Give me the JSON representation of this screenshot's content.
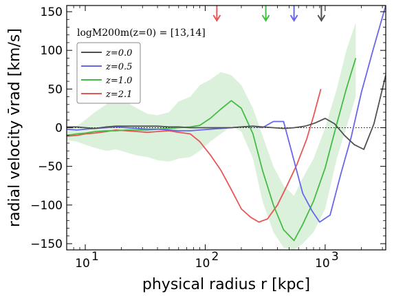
{
  "chart_data": {
    "type": "line",
    "title": "",
    "xlabel": "physical radius r [kpc]",
    "ylabel": "radial velocity v̄rad [km/s]",
    "xscale": "log",
    "xlim": [
      7,
      3200
    ],
    "ylim": [
      -158,
      158
    ],
    "x_ticks": [
      {
        "value": 10,
        "label": "10",
        "exp": "1"
      },
      {
        "value": 100,
        "label": "10",
        "exp": "2"
      },
      {
        "value": 1000,
        "label": "10",
        "exp": "3"
      }
    ],
    "y_ticks": [
      -150,
      -100,
      -50,
      0,
      50,
      100,
      150
    ],
    "zero_line": true,
    "grid": false,
    "annotation": "logM200m(z=0) = [13,14]",
    "legend_location": "upper-left",
    "series": [
      {
        "name": "z=0.0",
        "color": "#505050",
        "x": [
          7,
          8.5,
          10,
          12,
          15,
          18,
          22,
          27,
          33,
          40,
          50,
          60,
          75,
          90,
          110,
          135,
          165,
          200,
          250,
          300,
          370,
          450,
          550,
          680,
          820,
          1000,
          1200,
          1450,
          1750,
          2100,
          2550,
          3200
        ],
        "values": [
          1,
          1,
          0,
          -1,
          1,
          2,
          2,
          2,
          2,
          2,
          1,
          1,
          0,
          0,
          0,
          0,
          0,
          1,
          2,
          1,
          0,
          -1,
          0,
          2,
          6,
          12,
          5,
          -10,
          -22,
          -28,
          5,
          68
        ],
        "arrow_x": 930
      },
      {
        "name": "z=0.5",
        "color": "#6666ee",
        "x": [
          7,
          8.5,
          10,
          12,
          15,
          18,
          22,
          27,
          33,
          40,
          50,
          60,
          75,
          90,
          110,
          135,
          165,
          200,
          250,
          300,
          370,
          450,
          540,
          650,
          780,
          900,
          1100,
          1350,
          1650,
          2000,
          2500,
          3200
        ],
        "values": [
          -2,
          -3,
          -2,
          -1,
          0,
          1,
          0,
          -1,
          -2,
          -2,
          -3,
          -4,
          -4,
          -3,
          -2,
          -1,
          0,
          1,
          2,
          0,
          8,
          8,
          -38,
          -85,
          -108,
          -122,
          -113,
          -60,
          -12,
          45,
          100,
          158
        ],
        "arrow_x": 550
      },
      {
        "name": "z=1.0",
        "color": "#44bb44",
        "x": [
          7,
          8.5,
          10,
          12,
          15,
          18,
          22,
          27,
          33,
          40,
          50,
          60,
          75,
          90,
          110,
          135,
          165,
          200,
          250,
          300,
          370,
          450,
          550,
          650,
          800,
          1000,
          1250,
          1500,
          1800
        ],
        "values": [
          -10,
          -8,
          -7,
          -5,
          -4,
          -4,
          -3,
          -3,
          -3,
          -2,
          -1,
          0,
          1,
          3,
          12,
          24,
          35,
          25,
          -8,
          -55,
          -100,
          -132,
          -146,
          -125,
          -95,
          -52,
          5,
          50,
          90
        ],
        "band_x": [
          7,
          8.5,
          10,
          12,
          15,
          18,
          22,
          27,
          33,
          40,
          50,
          60,
          75,
          90,
          110,
          135,
          165,
          200,
          250,
          300,
          370,
          450,
          550,
          650,
          800,
          1000,
          1250,
          1500,
          1800
        ],
        "band_upper": [
          -4,
          2,
          10,
          20,
          30,
          38,
          33,
          25,
          18,
          16,
          20,
          34,
          40,
          55,
          62,
          72,
          68,
          55,
          25,
          -10,
          -50,
          -75,
          -88,
          -65,
          -40,
          0,
          50,
          100,
          136
        ],
        "band_lower": [
          -16,
          -18,
          -22,
          -26,
          -30,
          -28,
          -32,
          -36,
          -38,
          -42,
          -44,
          -40,
          -38,
          -30,
          -18,
          -8,
          2,
          -5,
          -40,
          -95,
          -135,
          -155,
          -158,
          -150,
          -135,
          -105,
          -40,
          0,
          40
        ],
        "band_color": "#d8f0d8",
        "arrow_x": 320
      },
      {
        "name": "z=2.1",
        "color": "#e85555",
        "x": [
          7,
          8.5,
          10,
          12,
          15,
          18,
          22,
          27,
          33,
          40,
          50,
          60,
          75,
          90,
          110,
          135,
          165,
          200,
          240,
          280,
          330,
          400,
          480,
          580,
          700,
          800,
          920
        ],
        "values": [
          -11,
          -10,
          -8,
          -7,
          -5,
          -3,
          -4,
          -5,
          -6,
          -5,
          -4,
          -6,
          -8,
          -18,
          -35,
          -55,
          -80,
          -105,
          -116,
          -122,
          -118,
          -100,
          -75,
          -48,
          -15,
          15,
          50
        ],
        "arrow_x": 125
      }
    ]
  }
}
